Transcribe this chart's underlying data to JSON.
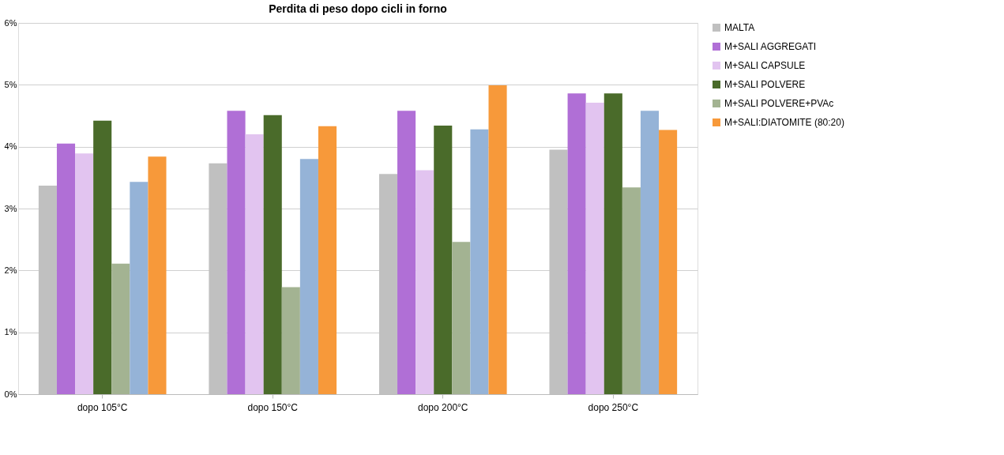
{
  "chart_data": {
    "type": "bar",
    "title": "Perdita di peso dopo cicli in forno",
    "categories": [
      "dopo 105°C",
      "dopo 150°C",
      "dopo 200°C",
      "dopo 250°C"
    ],
    "series": [
      {
        "name": "MALTA",
        "color": "#c0c0c0",
        "values": [
          3.37,
          3.73,
          3.56,
          3.95
        ]
      },
      {
        "name": "M+SALI AGGREGATI",
        "color": "#b06fd6",
        "values": [
          4.05,
          4.58,
          4.58,
          4.86
        ]
      },
      {
        "name": "M+SALI CAPSULE",
        "color": "#e2c4f0",
        "values": [
          3.89,
          4.2,
          3.62,
          4.71
        ]
      },
      {
        "name": "M+SALI POLVERE",
        "color": "#4a6b2a",
        "values": [
          4.42,
          4.51,
          4.34,
          4.86
        ]
      },
      {
        "name": "M+SALI POLVERE+PVAc",
        "color": "#a3b392",
        "values": [
          2.11,
          1.73,
          2.46,
          3.34
        ]
      },
      {
        "color": "#95b3d7",
        "values": [
          3.43,
          3.8,
          4.28,
          4.58
        ]
      },
      {
        "name": "M+SALI:DIATOMITE (80:20)",
        "color": "#f7993a",
        "values": [
          3.84,
          4.33,
          4.99,
          4.27
        ]
      }
    ],
    "ylim": [
      0,
      6
    ],
    "yticks": [
      {
        "value": 0,
        "label": "0%"
      },
      {
        "value": 1,
        "label": "1%"
      },
      {
        "value": 2,
        "label": "2%"
      },
      {
        "value": 3,
        "label": "3%"
      },
      {
        "value": 4,
        "label": "4%"
      },
      {
        "value": 5,
        "label": "5%"
      },
      {
        "value": 6,
        "label": "6%"
      }
    ],
    "grid": "y",
    "legend": "right"
  }
}
